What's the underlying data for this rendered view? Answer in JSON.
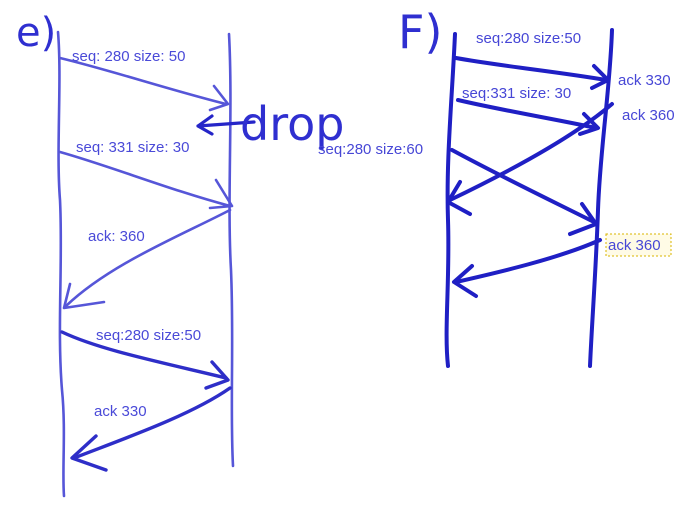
{
  "panel_e": {
    "heading": "e)",
    "msg1": "seq: 280 size: 50",
    "drop_note": "drop",
    "msg2": "seq: 331 size: 30",
    "ack1": "ack: 360",
    "msg3": "seq:280 size:50",
    "ack2": "ack 330"
  },
  "panel_f": {
    "heading": "F)",
    "msg1": "seq:280 size:50",
    "ack1": "ack 330",
    "msg2": "seq:331 size: 30",
    "ack2": "ack 360",
    "msg3": "seq:280 size:60",
    "ack3": "ack 360"
  },
  "colors": {
    "ink": "#2f2fd0",
    "faint_ink": "#5656d8",
    "highlight": "#fffbe6"
  }
}
